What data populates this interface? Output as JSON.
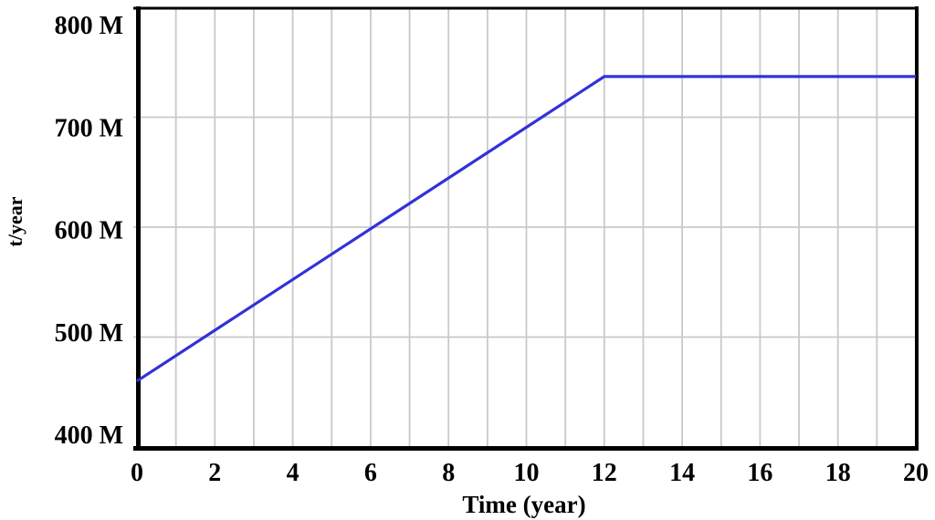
{
  "chart_data": {
    "type": "line",
    "title": "",
    "xlabel": "Time (year)",
    "ylabel": "t/year",
    "xlim": [
      0,
      20
    ],
    "ylim_M": [
      400,
      800
    ],
    "x_grid_step": 1,
    "x_tick_step_label": 2,
    "y_tick_step_M": 100,
    "x_tick_labels": [
      "0",
      "2",
      "4",
      "6",
      "8",
      "10",
      "12",
      "14",
      "16",
      "18",
      "20"
    ],
    "y_tick_labels_top_to_bottom": [
      "800 M",
      "700 M",
      "600 M",
      "500 M",
      "400 M"
    ],
    "grid": true,
    "legend_position": "none",
    "series": [
      {
        "name": "t/year",
        "color": "#3232d8",
        "points_x_year": [
          0,
          12,
          20
        ],
        "points_y_M": [
          460,
          737,
          737
        ]
      }
    ],
    "grid_color": "#c9c9c9",
    "axis_color": "#000000",
    "background_color": "#ffffff"
  }
}
